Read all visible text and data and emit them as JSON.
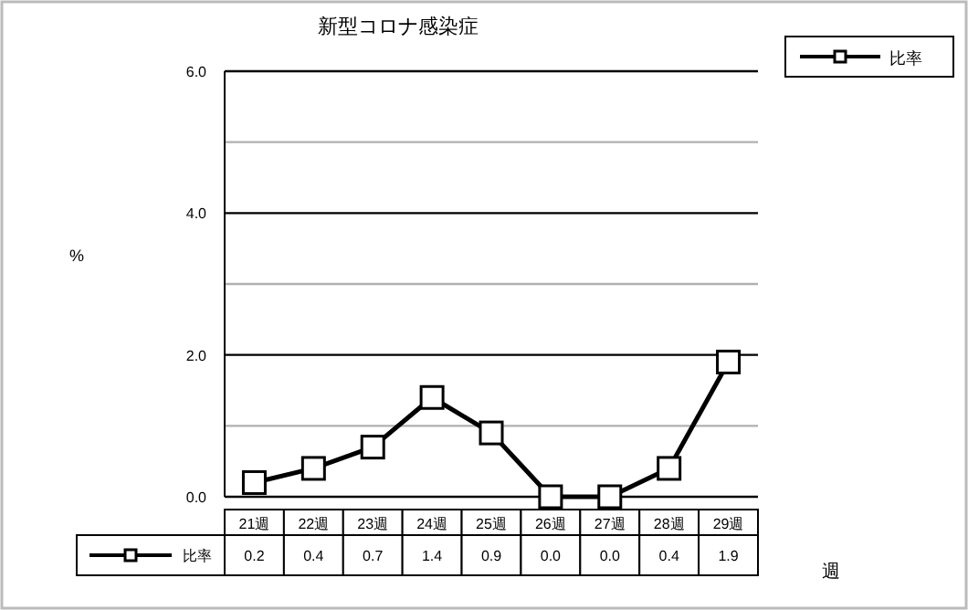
{
  "chart_data": {
    "type": "line",
    "title": "新型コロナ感染症",
    "xlabel": "週",
    "annotations": [
      "%"
    ],
    "categories": [
      "21週",
      "22週",
      "23週",
      "24週",
      "25週",
      "26週",
      "27週",
      "28週",
      "29週"
    ],
    "series": [
      {
        "name": "比率",
        "color": "#000000",
        "values": [
          0.2,
          0.4,
          0.7,
          1.4,
          0.9,
          0.0,
          0.0,
          0.4,
          1.9
        ],
        "value_labels": [
          "0.2",
          "0.4",
          "0.7",
          "1.4",
          "0.9",
          "0.0",
          "0.0",
          "0.4",
          "1.9"
        ]
      }
    ],
    "ylim": [
      0,
      6
    ],
    "yticks": [
      {
        "value": 0,
        "label": "0.0"
      },
      {
        "value": 1,
        "label": null
      },
      {
        "value": 2,
        "label": "2.0"
      },
      {
        "value": 3,
        "label": null
      },
      {
        "value": 4,
        "label": "4.0"
      },
      {
        "value": 5,
        "label": null
      },
      {
        "value": 6,
        "label": "6.0"
      }
    ],
    "grid": "y",
    "legend": "top right",
    "marker": "square",
    "line_style": "solid"
  }
}
